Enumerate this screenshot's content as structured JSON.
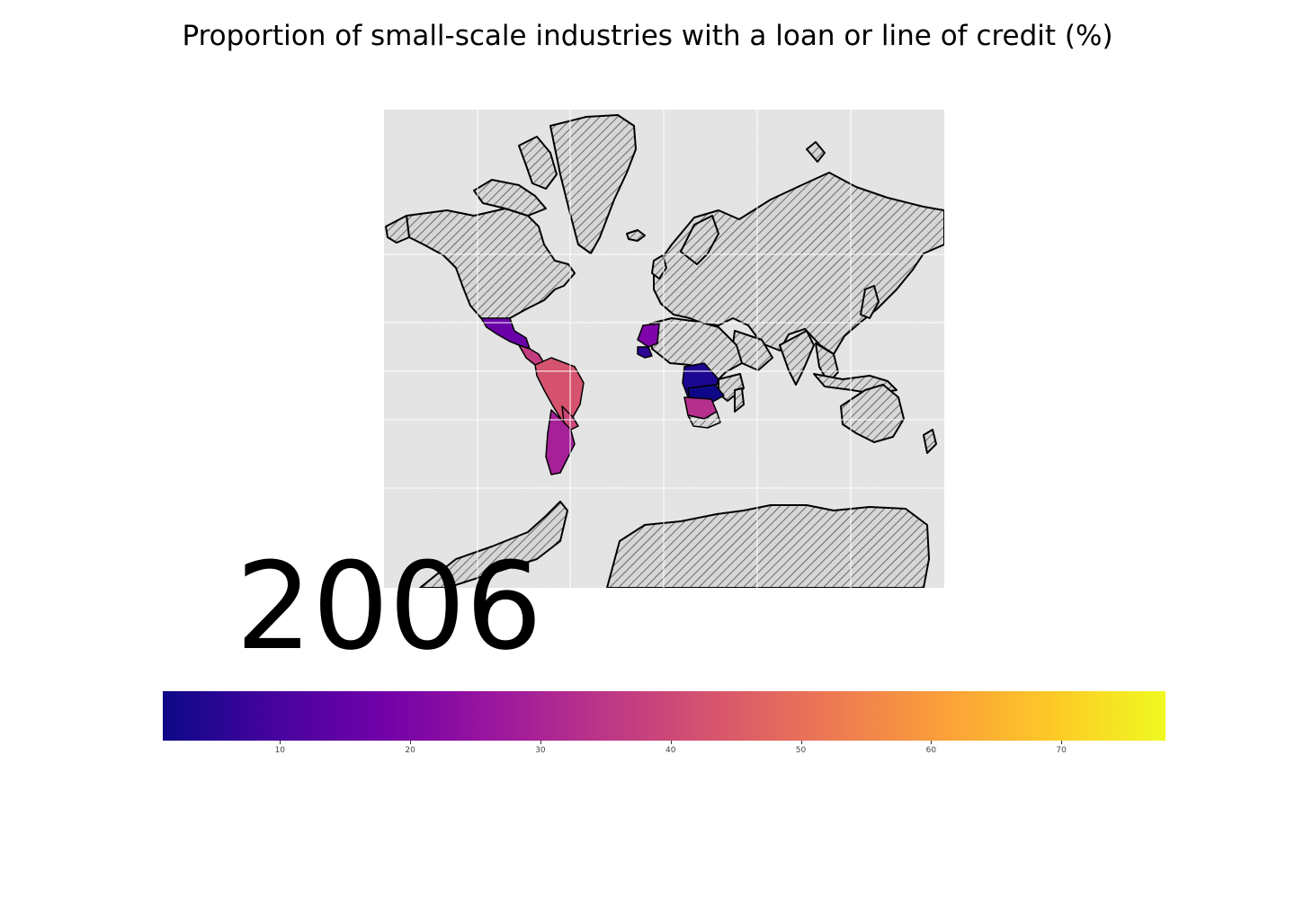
{
  "figure": {
    "title": "Proportion of small-scale industries with a loan or line of credit (%)",
    "year": "2006"
  },
  "map": {
    "projection": "mercator",
    "ocean_color": "#e5e5e5",
    "land_color": "#d3d3d3",
    "border_color": "#000000",
    "no_data_pattern": "diagonal-hatch",
    "gridlines": true,
    "regions": [
      {
        "name": "Mexico",
        "value": 16,
        "color": "#6a00a8"
      },
      {
        "name": "Central America",
        "value": 32,
        "color": "#c33d80"
      },
      {
        "name": "South America (north/west)",
        "value": 36,
        "color": "#d5536f"
      },
      {
        "name": "Chile / Argentina",
        "value": 26,
        "color": "#a62098"
      },
      {
        "name": "Paraguay / Uruguay",
        "value": 34,
        "color": "#cc4778"
      },
      {
        "name": "Senegal / Mali",
        "value": 17,
        "color": "#7e03a8"
      },
      {
        "name": "Guinea",
        "value": 6,
        "color": "#2c0594"
      },
      {
        "name": "DR Congo / Angola",
        "value": 4,
        "color": "#1c0790"
      },
      {
        "name": "Zambia / Malawi",
        "value": 3,
        "color": "#0d0887"
      },
      {
        "name": "Namibia / Botswana",
        "value": 30,
        "color": "#b52f8c"
      }
    ]
  },
  "colorbar": {
    "colormap": "plasma",
    "min": 1,
    "max": 78,
    "ticks": [
      10,
      20,
      30,
      40,
      50,
      60,
      70
    ],
    "stops": [
      "#0d0887",
      "#46039f",
      "#7201a8",
      "#9c179e",
      "#bd3786",
      "#d8576b",
      "#ed7953",
      "#fb9f3a",
      "#fdca26",
      "#f0f921"
    ]
  }
}
